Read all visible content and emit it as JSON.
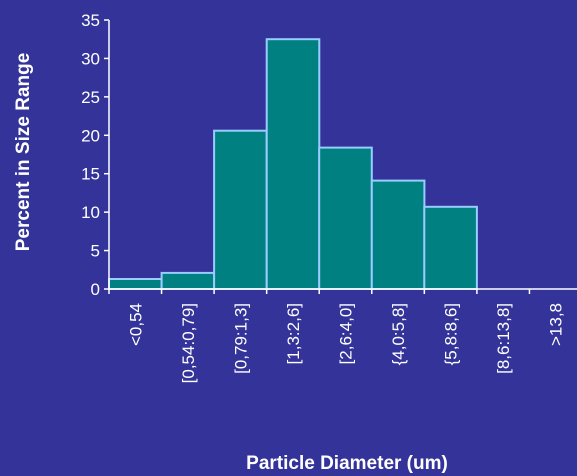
{
  "chart_data": {
    "type": "bar",
    "title": "",
    "xlabel": "Particle Diameter (um)",
    "ylabel": "Percent in Size Range",
    "categories": [
      "<0,54",
      "[0,54:0,79]",
      "[0,79:1,3]",
      "[1,3:2,6]",
      "[2,6:4,0]",
      "{4,0:5,8]",
      "{5,8:8,6]",
      "[8,6:13,8]",
      ">13,8"
    ],
    "values": [
      1.3,
      2.1,
      20.6,
      32.5,
      18.4,
      14.1,
      10.7,
      0,
      0
    ],
    "ylim": [
      0,
      35
    ],
    "yticks": [
      0,
      5,
      10,
      15,
      20,
      25,
      30,
      35
    ],
    "grid": false,
    "legend": "none",
    "colors": {
      "background": "#333399",
      "bar_fill": "#008080",
      "bar_stroke": "#99ccff",
      "axis": "#ffffff",
      "text": "#ffffff"
    }
  }
}
